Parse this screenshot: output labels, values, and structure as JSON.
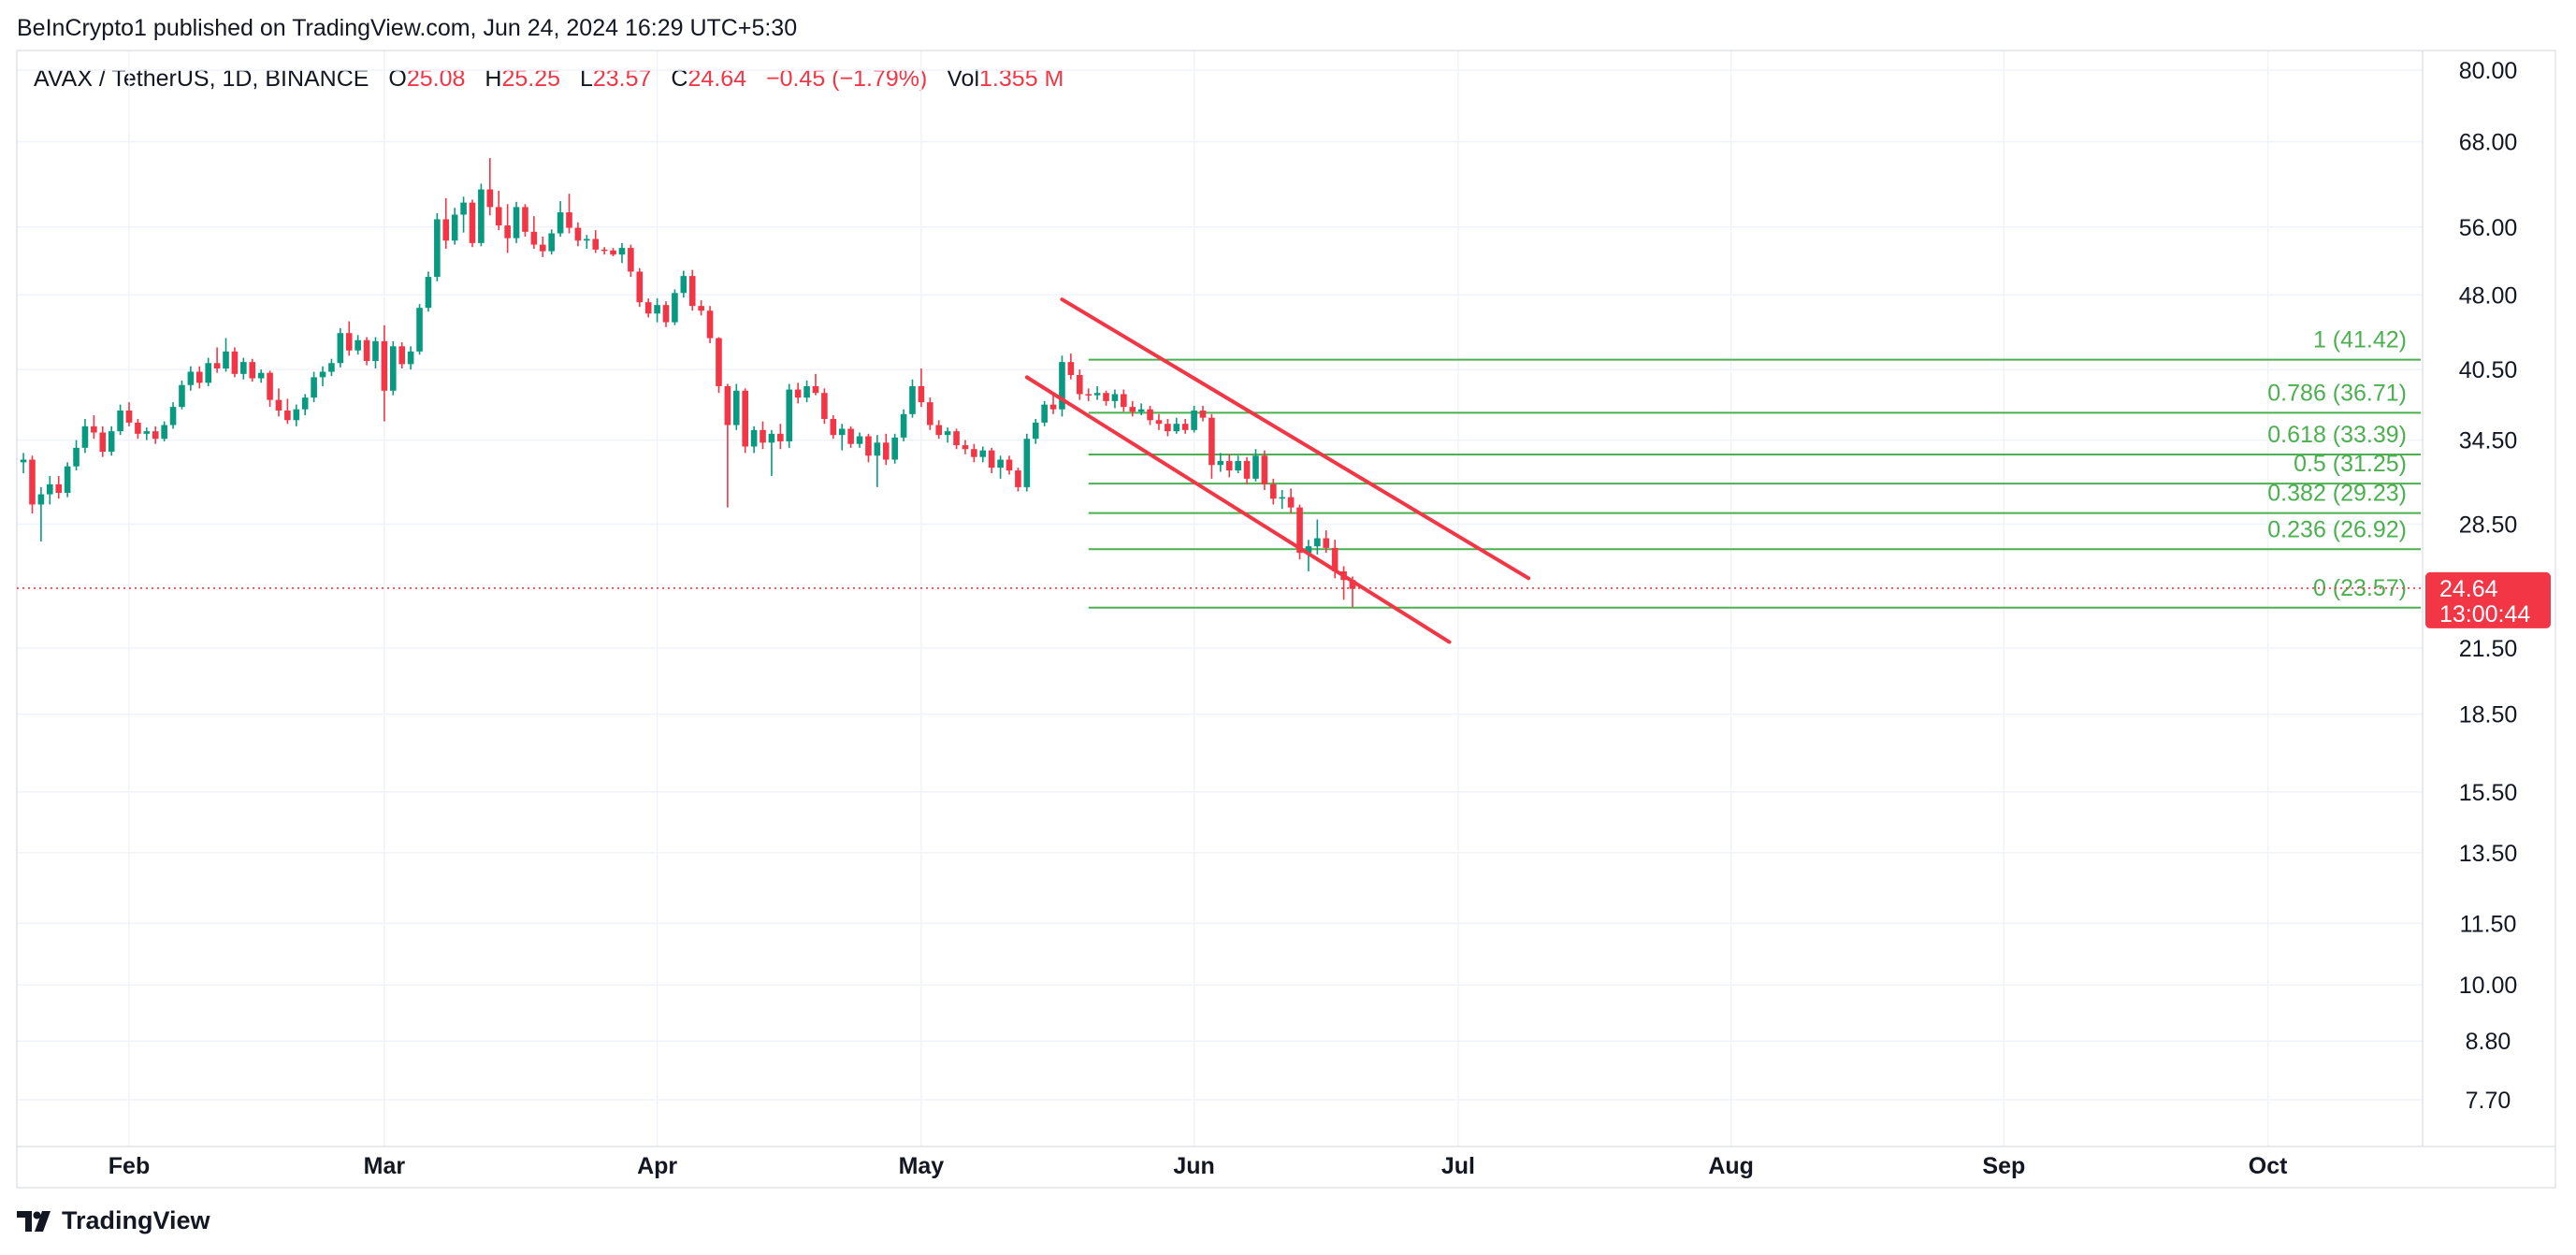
{
  "header": {
    "publisher": "BeInCrypto1 published on TradingView.com, Jun 24, 2024 16:29 UTC+5:30"
  },
  "legend": {
    "symbol": "AVAX / TetherUS, 1D, BINANCE",
    "open_label": "O",
    "open": "25.08",
    "high_label": "H",
    "high": "25.25",
    "low_label": "L",
    "low": "23.57",
    "close_label": "C",
    "close": "24.64",
    "change": "−0.45 (−1.79%)",
    "vol_label": "Vol",
    "vol": "1.355 M"
  },
  "footer": {
    "brand": "TradingView",
    "logo_icon": "tradingview-logo-icon"
  },
  "price_badge": {
    "price": "24.64",
    "countdown": "13:00:44",
    "color": "#f23645"
  },
  "colors": {
    "up": "#089981",
    "down": "#f23645",
    "fib": "#4caf50",
    "channel": "#f23645",
    "grid": "#f0f3fa"
  },
  "chart_data": {
    "type": "candlestick",
    "y_scale": "log",
    "y_ticks": [
      "80.00",
      "68.00",
      "56.00",
      "48.00",
      "40.50",
      "34.50",
      "28.50",
      "21.50",
      "18.50",
      "15.50",
      "13.50",
      "11.50",
      "10.00",
      "8.80",
      "7.70"
    ],
    "x_ticks": [
      "Feb",
      "Mar",
      "Apr",
      "May",
      "Jun",
      "Jul",
      "Aug",
      "Sep",
      "Oct"
    ],
    "x_range": [
      "2024-01-20",
      "2024-10-10"
    ],
    "fib_levels": [
      {
        "label": "1 (41.42)",
        "value": 41.42
      },
      {
        "label": "0.786 (36.71)",
        "value": 36.71
      },
      {
        "label": "0.618 (33.39)",
        "value": 33.39
      },
      {
        "label": "0.5 (31.25)",
        "value": 31.25
      },
      {
        "label": "0.382 (29.23)",
        "value": 29.23
      },
      {
        "label": "0.236 (26.92)",
        "value": 26.92
      },
      {
        "label": "0 (23.57)",
        "value": 23.57
      }
    ],
    "fib_start": "2024-05-20",
    "current_price": 24.64,
    "channel": [
      {
        "from": [
          "2024-05-17",
          47.5
        ],
        "to": [
          "2024-07-09",
          25.2
        ]
      },
      {
        "from": [
          "2024-05-13",
          39.8
        ],
        "to": [
          "2024-06-30",
          21.8
        ]
      }
    ],
    "candles": [
      [
        32.8,
        33.5,
        32.0,
        33.0
      ],
      [
        33.0,
        33.3,
        29.2,
        29.8
      ],
      [
        29.8,
        31.0,
        27.4,
        30.5
      ],
      [
        30.5,
        31.8,
        29.8,
        31.2
      ],
      [
        31.2,
        31.8,
        30.2,
        30.6
      ],
      [
        30.6,
        32.8,
        30.3,
        32.5
      ],
      [
        32.5,
        34.5,
        32.2,
        33.9
      ],
      [
        33.9,
        36.2,
        33.5,
        35.6
      ],
      [
        35.6,
        36.5,
        34.6,
        35.1
      ],
      [
        35.1,
        35.6,
        33.2,
        33.6
      ],
      [
        33.6,
        35.6,
        33.3,
        35.2
      ],
      [
        35.2,
        37.4,
        34.9,
        36.9
      ],
      [
        36.9,
        37.6,
        35.6,
        35.9
      ],
      [
        35.9,
        36.2,
        34.6,
        35.0
      ],
      [
        35.0,
        35.5,
        34.5,
        35.2
      ],
      [
        35.2,
        35.6,
        34.2,
        34.6
      ],
      [
        34.6,
        36.0,
        34.4,
        35.7
      ],
      [
        35.7,
        37.6,
        35.4,
        37.2
      ],
      [
        37.2,
        39.5,
        37.0,
        39.1
      ],
      [
        39.1,
        40.8,
        38.6,
        40.3
      ],
      [
        40.3,
        40.8,
        38.8,
        39.3
      ],
      [
        39.3,
        41.6,
        39.0,
        41.1
      ],
      [
        41.1,
        42.6,
        40.2,
        40.6
      ],
      [
        40.6,
        43.5,
        40.3,
        42.2
      ],
      [
        42.2,
        42.6,
        39.8,
        40.1
      ],
      [
        40.1,
        41.6,
        39.6,
        41.2
      ],
      [
        41.2,
        41.5,
        39.4,
        39.7
      ],
      [
        39.7,
        40.5,
        39.3,
        40.2
      ],
      [
        40.2,
        40.4,
        37.2,
        37.8
      ],
      [
        37.8,
        38.8,
        36.4,
        36.9
      ],
      [
        36.9,
        37.9,
        35.8,
        36.1
      ],
      [
        36.1,
        37.4,
        35.6,
        37.0
      ],
      [
        37.0,
        38.3,
        36.5,
        38.0
      ],
      [
        38.0,
        40.3,
        37.6,
        39.8
      ],
      [
        39.8,
        40.8,
        39.0,
        40.3
      ],
      [
        40.3,
        41.5,
        39.9,
        41.1
      ],
      [
        41.1,
        44.5,
        40.7,
        44.0
      ],
      [
        44.0,
        45.2,
        41.8,
        42.3
      ],
      [
        42.3,
        43.8,
        41.9,
        43.3
      ],
      [
        43.3,
        43.6,
        40.9,
        41.3
      ],
      [
        41.3,
        43.6,
        40.6,
        43.2
      ],
      [
        43.2,
        44.8,
        36.0,
        38.6
      ],
      [
        38.6,
        43.2,
        38.2,
        42.7
      ],
      [
        42.7,
        43.1,
        40.6,
        41.0
      ],
      [
        41.0,
        42.7,
        40.5,
        42.2
      ],
      [
        42.2,
        47.0,
        41.9,
        46.6
      ],
      [
        46.6,
        50.6,
        46.2,
        50.0
      ],
      [
        50.0,
        57.8,
        49.5,
        57.0
      ],
      [
        57.0,
        59.8,
        53.3,
        54.3
      ],
      [
        54.3,
        58.5,
        53.8,
        57.6
      ],
      [
        57.6,
        60.0,
        55.3,
        59.2
      ],
      [
        59.2,
        59.6,
        53.5,
        54.0
      ],
      [
        54.0,
        61.8,
        53.6,
        61.0
      ],
      [
        61.0,
        65.5,
        57.5,
        58.6
      ],
      [
        58.6,
        60.8,
        55.6,
        56.2
      ],
      [
        56.2,
        59.0,
        52.8,
        54.6
      ],
      [
        54.6,
        59.3,
        54.0,
        58.6
      ],
      [
        58.6,
        59.0,
        54.8,
        55.4
      ],
      [
        55.4,
        57.4,
        53.3,
        53.8
      ],
      [
        53.8,
        54.8,
        52.3,
        53.0
      ],
      [
        53.0,
        55.7,
        52.6,
        55.2
      ],
      [
        55.2,
        59.4,
        54.8,
        57.9
      ],
      [
        57.9,
        60.4,
        55.2,
        55.9
      ],
      [
        55.9,
        56.6,
        53.6,
        54.3
      ],
      [
        54.3,
        55.0,
        53.3,
        54.5
      ],
      [
        54.5,
        55.6,
        52.8,
        53.2
      ],
      [
        53.2,
        53.5,
        52.6,
        53.1
      ],
      [
        53.1,
        53.4,
        52.4,
        52.6
      ],
      [
        52.6,
        54.0,
        51.6,
        53.4
      ],
      [
        53.4,
        53.8,
        50.0,
        50.6
      ],
      [
        50.6,
        51.0,
        46.7,
        47.2
      ],
      [
        47.2,
        47.6,
        45.6,
        46.0
      ],
      [
        46.0,
        47.6,
        45.1,
        46.9
      ],
      [
        46.9,
        47.3,
        44.6,
        45.1
      ],
      [
        45.1,
        48.6,
        44.8,
        48.2
      ],
      [
        48.2,
        50.7,
        47.7,
        50.1
      ],
      [
        50.1,
        50.8,
        46.3,
        46.8
      ],
      [
        46.8,
        47.4,
        45.8,
        46.3
      ],
      [
        46.3,
        46.8,
        43.0,
        43.5
      ],
      [
        43.5,
        43.6,
        38.4,
        39.0
      ],
      [
        39.0,
        39.2,
        29.6,
        35.7
      ],
      [
        35.7,
        39.2,
        35.3,
        38.6
      ],
      [
        38.6,
        38.8,
        33.5,
        34.0
      ],
      [
        34.0,
        35.6,
        33.5,
        35.3
      ],
      [
        35.3,
        36.0,
        33.8,
        34.3
      ],
      [
        34.3,
        35.3,
        31.8,
        35.0
      ],
      [
        35.0,
        35.8,
        33.8,
        34.4
      ],
      [
        34.4,
        39.2,
        33.9,
        38.7
      ],
      [
        38.7,
        39.3,
        37.5,
        38.0
      ],
      [
        38.0,
        39.5,
        37.6,
        39.0
      ],
      [
        39.0,
        40.1,
        38.2,
        38.4
      ],
      [
        38.4,
        38.8,
        35.8,
        36.2
      ],
      [
        36.2,
        36.5,
        34.6,
        34.9
      ],
      [
        34.9,
        35.8,
        33.7,
        35.4
      ],
      [
        35.4,
        35.6,
        33.9,
        34.2
      ],
      [
        34.2,
        35.1,
        33.9,
        34.8
      ],
      [
        34.8,
        35.0,
        32.8,
        33.3
      ],
      [
        33.3,
        34.9,
        31.0,
        34.3
      ],
      [
        34.3,
        35.0,
        32.6,
        33.0
      ],
      [
        33.0,
        35.0,
        32.7,
        34.7
      ],
      [
        34.7,
        37.0,
        34.4,
        36.6
      ],
      [
        36.6,
        39.6,
        36.3,
        39.0
      ],
      [
        39.0,
        40.6,
        37.2,
        37.6
      ],
      [
        37.6,
        38.0,
        35.3,
        35.7
      ],
      [
        35.7,
        36.1,
        34.6,
        34.9
      ],
      [
        34.9,
        35.5,
        34.3,
        35.2
      ],
      [
        35.2,
        35.4,
        33.8,
        34.1
      ],
      [
        34.1,
        34.5,
        33.4,
        33.8
      ],
      [
        33.8,
        34.2,
        32.8,
        33.2
      ],
      [
        33.2,
        34.0,
        32.8,
        33.7
      ],
      [
        33.7,
        33.9,
        32.0,
        32.4
      ],
      [
        32.4,
        33.3,
        31.6,
        33.0
      ],
      [
        33.0,
        33.3,
        31.9,
        32.2
      ],
      [
        32.2,
        32.4,
        30.7,
        31.0
      ],
      [
        31.0,
        35.0,
        30.7,
        34.6
      ],
      [
        34.6,
        36.2,
        34.2,
        35.9
      ],
      [
        35.9,
        37.7,
        35.6,
        37.4
      ],
      [
        37.4,
        38.2,
        36.6,
        37.0
      ],
      [
        37.0,
        41.8,
        36.4,
        41.2
      ],
      [
        41.2,
        42.0,
        39.6,
        40.0
      ],
      [
        40.0,
        40.5,
        37.8,
        38.3
      ],
      [
        38.3,
        38.8,
        37.7,
        38.2
      ],
      [
        38.2,
        39.0,
        37.8,
        38.4
      ],
      [
        38.4,
        38.6,
        37.3,
        37.7
      ],
      [
        37.7,
        38.7,
        37.1,
        38.3
      ],
      [
        38.3,
        38.7,
        36.8,
        37.2
      ],
      [
        37.2,
        37.7,
        36.4,
        36.8
      ],
      [
        36.8,
        37.5,
        36.5,
        37.0
      ],
      [
        37.0,
        37.3,
        35.7,
        36.1
      ],
      [
        36.1,
        36.6,
        35.3,
        35.8
      ],
      [
        35.8,
        36.2,
        34.8,
        35.2
      ],
      [
        35.2,
        36.3,
        35.0,
        35.8
      ],
      [
        35.8,
        36.2,
        35.0,
        35.3
      ],
      [
        35.3,
        37.3,
        35.1,
        36.9
      ],
      [
        36.9,
        37.3,
        36.0,
        36.3
      ],
      [
        36.3,
        36.6,
        31.6,
        32.6
      ],
      [
        32.6,
        33.5,
        32.1,
        32.9
      ],
      [
        32.9,
        33.4,
        31.7,
        32.2
      ],
      [
        32.2,
        33.3,
        32.0,
        32.9
      ],
      [
        32.9,
        33.2,
        31.2,
        31.6
      ],
      [
        31.6,
        33.8,
        31.4,
        33.3
      ],
      [
        33.3,
        33.7,
        30.8,
        31.2
      ],
      [
        31.2,
        31.6,
        29.8,
        30.2
      ],
      [
        30.2,
        30.8,
        29.5,
        30.3
      ],
      [
        30.3,
        30.9,
        29.2,
        29.6
      ],
      [
        29.6,
        29.8,
        26.3,
        26.7
      ],
      [
        26.7,
        27.5,
        25.6,
        27.1
      ],
      [
        27.1,
        28.8,
        26.6,
        27.6
      ],
      [
        27.6,
        28.1,
        26.7,
        27.0
      ],
      [
        27.0,
        27.5,
        25.2,
        25.6
      ],
      [
        25.6,
        25.9,
        24.0,
        25.1
      ],
      [
        25.1,
        25.3,
        23.6,
        24.6
      ]
    ]
  }
}
